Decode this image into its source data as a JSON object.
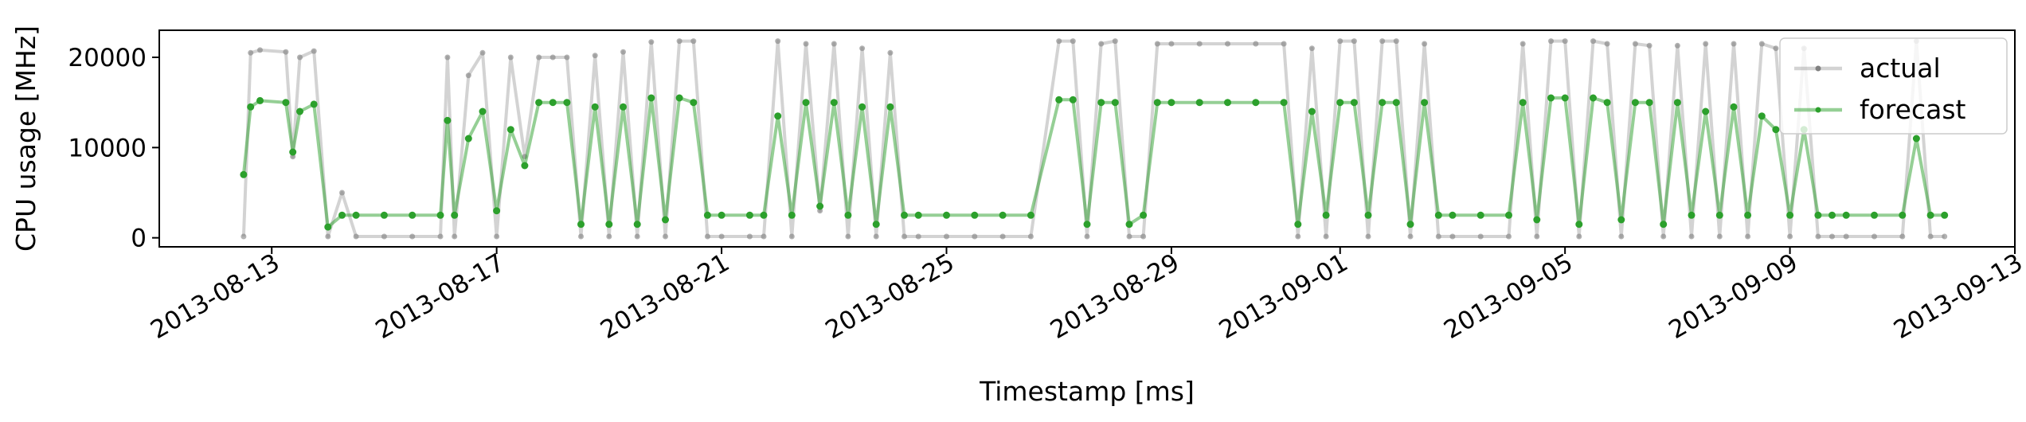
{
  "chart_data": {
    "type": "line",
    "title": "",
    "xlabel": "Timestamp [ms]",
    "ylabel": "CPU usage [MHz]",
    "xlim": [
      "2013-08-11",
      "2013-09-13"
    ],
    "ylim": [
      -1000,
      23000
    ],
    "grid": false,
    "legend": "top-right",
    "x_ticks": [
      "2013-08-13",
      "2013-08-17",
      "2013-08-21",
      "2013-08-25",
      "2013-08-29",
      "2013-09-01",
      "2013-09-05",
      "2013-09-09",
      "2013-09-13"
    ],
    "y_ticks": [
      0,
      10000,
      20000
    ],
    "y_tick_labels": [
      "0",
      "10000",
      "20000"
    ],
    "colors": {
      "actual": "#808080",
      "forecast": "#2ca02c"
    },
    "series": [
      {
        "name": "actual",
        "color": "#808080",
        "points": [
          [
            "2013-08-12T12:00",
            150
          ],
          [
            "2013-08-12T15:00",
            20500
          ],
          [
            "2013-08-12T19:00",
            20800
          ],
          [
            "2013-08-13T06:00",
            20600
          ],
          [
            "2013-08-13T09:00",
            9000
          ],
          [
            "2013-08-13T12:00",
            20000
          ],
          [
            "2013-08-13T18:00",
            20700
          ],
          [
            "2013-08-14T00:00",
            150
          ],
          [
            "2013-08-14T06:00",
            5000
          ],
          [
            "2013-08-14T12:00",
            150
          ],
          [
            "2013-08-15T00:00",
            150
          ],
          [
            "2013-08-15T12:00",
            150
          ],
          [
            "2013-08-16T00:00",
            150
          ],
          [
            "2013-08-16T03:00",
            20000
          ],
          [
            "2013-08-16T06:00",
            150
          ],
          [
            "2013-08-16T12:00",
            18000
          ],
          [
            "2013-08-16T18:00",
            20500
          ],
          [
            "2013-08-17T00:00",
            150
          ],
          [
            "2013-08-17T06:00",
            20000
          ],
          [
            "2013-08-17T12:00",
            9000
          ],
          [
            "2013-08-17T18:00",
            20000
          ],
          [
            "2013-08-18T00:00",
            20000
          ],
          [
            "2013-08-18T06:00",
            20000
          ],
          [
            "2013-08-18T12:00",
            150
          ],
          [
            "2013-08-18T18:00",
            20200
          ],
          [
            "2013-08-19T00:00",
            150
          ],
          [
            "2013-08-19T06:00",
            20600
          ],
          [
            "2013-08-19T12:00",
            150
          ],
          [
            "2013-08-19T18:00",
            21700
          ],
          [
            "2013-08-20T00:00",
            150
          ],
          [
            "2013-08-20T06:00",
            21800
          ],
          [
            "2013-08-20T12:00",
            21800
          ],
          [
            "2013-08-20T18:00",
            150
          ],
          [
            "2013-08-21T00:00",
            150
          ],
          [
            "2013-08-21T12:00",
            150
          ],
          [
            "2013-08-21T18:00",
            150
          ],
          [
            "2013-08-22T00:00",
            21800
          ],
          [
            "2013-08-22T06:00",
            150
          ],
          [
            "2013-08-22T12:00",
            21500
          ],
          [
            "2013-08-22T18:00",
            3000
          ],
          [
            "2013-08-23T00:00",
            21500
          ],
          [
            "2013-08-23T06:00",
            150
          ],
          [
            "2013-08-23T12:00",
            21000
          ],
          [
            "2013-08-23T18:00",
            150
          ],
          [
            "2013-08-24T00:00",
            20500
          ],
          [
            "2013-08-24T06:00",
            150
          ],
          [
            "2013-08-24T12:00",
            150
          ],
          [
            "2013-08-25T00:00",
            150
          ],
          [
            "2013-08-25T12:00",
            150
          ],
          [
            "2013-08-26T00:00",
            150
          ],
          [
            "2013-08-26T12:00",
            150
          ],
          [
            "2013-08-27T00:00",
            21800
          ],
          [
            "2013-08-27T06:00",
            21800
          ],
          [
            "2013-08-27T12:00",
            150
          ],
          [
            "2013-08-27T18:00",
            21500
          ],
          [
            "2013-08-28T00:00",
            21800
          ],
          [
            "2013-08-28T06:00",
            150
          ],
          [
            "2013-08-28T12:00",
            150
          ],
          [
            "2013-08-28T18:00",
            21500
          ],
          [
            "2013-08-29T00:00",
            21500
          ],
          [
            "2013-08-29T12:00",
            21500
          ],
          [
            "2013-08-30T00:00",
            21500
          ],
          [
            "2013-08-30T12:00",
            21500
          ],
          [
            "2013-08-31T00:00",
            21500
          ],
          [
            "2013-08-31T06:00",
            150
          ],
          [
            "2013-08-31T12:00",
            21000
          ],
          [
            "2013-08-31T18:00",
            150
          ],
          [
            "2013-09-01T00:00",
            21800
          ],
          [
            "2013-09-01T06:00",
            21800
          ],
          [
            "2013-09-01T12:00",
            150
          ],
          [
            "2013-09-01T18:00",
            21800
          ],
          [
            "2013-09-02T00:00",
            21800
          ],
          [
            "2013-09-02T06:00",
            150
          ],
          [
            "2013-09-02T12:00",
            21500
          ],
          [
            "2013-09-02T18:00",
            150
          ],
          [
            "2013-09-03T00:00",
            150
          ],
          [
            "2013-09-03T12:00",
            150
          ],
          [
            "2013-09-04T00:00",
            150
          ],
          [
            "2013-09-04T06:00",
            21500
          ],
          [
            "2013-09-04T12:00",
            150
          ],
          [
            "2013-09-04T18:00",
            21800
          ],
          [
            "2013-09-05T00:00",
            21800
          ],
          [
            "2013-09-05T06:00",
            150
          ],
          [
            "2013-09-05T12:00",
            21800
          ],
          [
            "2013-09-05T18:00",
            21500
          ],
          [
            "2013-09-06T00:00",
            150
          ],
          [
            "2013-09-06T06:00",
            21500
          ],
          [
            "2013-09-06T12:00",
            21300
          ],
          [
            "2013-09-06T18:00",
            150
          ],
          [
            "2013-09-07T00:00",
            21300
          ],
          [
            "2013-09-07T06:00",
            150
          ],
          [
            "2013-09-07T12:00",
            21500
          ],
          [
            "2013-09-07T18:00",
            150
          ],
          [
            "2013-09-08T00:00",
            21500
          ],
          [
            "2013-09-08T06:00",
            150
          ],
          [
            "2013-09-08T12:00",
            21500
          ],
          [
            "2013-09-08T18:00",
            21000
          ],
          [
            "2013-09-09T00:00",
            150
          ],
          [
            "2013-09-09T06:00",
            21000
          ],
          [
            "2013-09-09T12:00",
            150
          ],
          [
            "2013-09-09T18:00",
            150
          ],
          [
            "2013-09-10T00:00",
            150
          ],
          [
            "2013-09-10T12:00",
            150
          ],
          [
            "2013-09-11T00:00",
            150
          ],
          [
            "2013-09-11T06:00",
            21800
          ],
          [
            "2013-09-11T12:00",
            150
          ],
          [
            "2013-09-11T18:00",
            150
          ]
        ]
      },
      {
        "name": "forecast",
        "color": "#2ca02c",
        "points": [
          [
            "2013-08-12T12:00",
            7000
          ],
          [
            "2013-08-12T15:00",
            14500
          ],
          [
            "2013-08-12T19:00",
            15200
          ],
          [
            "2013-08-13T06:00",
            15000
          ],
          [
            "2013-08-13T09:00",
            9500
          ],
          [
            "2013-08-13T12:00",
            14000
          ],
          [
            "2013-08-13T18:00",
            14800
          ],
          [
            "2013-08-14T00:00",
            1200
          ],
          [
            "2013-08-14T06:00",
            2500
          ],
          [
            "2013-08-14T12:00",
            2500
          ],
          [
            "2013-08-15T00:00",
            2500
          ],
          [
            "2013-08-15T12:00",
            2500
          ],
          [
            "2013-08-16T00:00",
            2500
          ],
          [
            "2013-08-16T03:00",
            13000
          ],
          [
            "2013-08-16T06:00",
            2500
          ],
          [
            "2013-08-16T12:00",
            11000
          ],
          [
            "2013-08-16T18:00",
            14000
          ],
          [
            "2013-08-17T00:00",
            3000
          ],
          [
            "2013-08-17T06:00",
            12000
          ],
          [
            "2013-08-17T12:00",
            8000
          ],
          [
            "2013-08-17T18:00",
            15000
          ],
          [
            "2013-08-18T00:00",
            15000
          ],
          [
            "2013-08-18T06:00",
            15000
          ],
          [
            "2013-08-18T12:00",
            1500
          ],
          [
            "2013-08-18T18:00",
            14500
          ],
          [
            "2013-08-19T00:00",
            1500
          ],
          [
            "2013-08-19T06:00",
            14500
          ],
          [
            "2013-08-19T12:00",
            1500
          ],
          [
            "2013-08-19T18:00",
            15500
          ],
          [
            "2013-08-20T00:00",
            2000
          ],
          [
            "2013-08-20T06:00",
            15500
          ],
          [
            "2013-08-20T12:00",
            15000
          ],
          [
            "2013-08-20T18:00",
            2500
          ],
          [
            "2013-08-21T00:00",
            2500
          ],
          [
            "2013-08-21T12:00",
            2500
          ],
          [
            "2013-08-21T18:00",
            2500
          ],
          [
            "2013-08-22T00:00",
            13500
          ],
          [
            "2013-08-22T06:00",
            2500
          ],
          [
            "2013-08-22T12:00",
            15000
          ],
          [
            "2013-08-22T18:00",
            3500
          ],
          [
            "2013-08-23T00:00",
            15000
          ],
          [
            "2013-08-23T06:00",
            2500
          ],
          [
            "2013-08-23T12:00",
            14500
          ],
          [
            "2013-08-23T18:00",
            1500
          ],
          [
            "2013-08-24T00:00",
            14500
          ],
          [
            "2013-08-24T06:00",
            2500
          ],
          [
            "2013-08-24T12:00",
            2500
          ],
          [
            "2013-08-25T00:00",
            2500
          ],
          [
            "2013-08-25T12:00",
            2500
          ],
          [
            "2013-08-26T00:00",
            2500
          ],
          [
            "2013-08-26T12:00",
            2500
          ],
          [
            "2013-08-27T00:00",
            15300
          ],
          [
            "2013-08-27T06:00",
            15300
          ],
          [
            "2013-08-27T12:00",
            1500
          ],
          [
            "2013-08-27T18:00",
            15000
          ],
          [
            "2013-08-28T00:00",
            15000
          ],
          [
            "2013-08-28T06:00",
            1500
          ],
          [
            "2013-08-28T12:00",
            2500
          ],
          [
            "2013-08-28T18:00",
            15000
          ],
          [
            "2013-08-29T00:00",
            15000
          ],
          [
            "2013-08-29T12:00",
            15000
          ],
          [
            "2013-08-30T00:00",
            15000
          ],
          [
            "2013-08-30T12:00",
            15000
          ],
          [
            "2013-08-31T00:00",
            15000
          ],
          [
            "2013-08-31T06:00",
            1500
          ],
          [
            "2013-08-31T12:00",
            14000
          ],
          [
            "2013-08-31T18:00",
            2500
          ],
          [
            "2013-09-01T00:00",
            15000
          ],
          [
            "2013-09-01T06:00",
            15000
          ],
          [
            "2013-09-01T12:00",
            2500
          ],
          [
            "2013-09-01T18:00",
            15000
          ],
          [
            "2013-09-02T00:00",
            15000
          ],
          [
            "2013-09-02T06:00",
            1500
          ],
          [
            "2013-09-02T12:00",
            15000
          ],
          [
            "2013-09-02T18:00",
            2500
          ],
          [
            "2013-09-03T00:00",
            2500
          ],
          [
            "2013-09-03T12:00",
            2500
          ],
          [
            "2013-09-04T00:00",
            2500
          ],
          [
            "2013-09-04T06:00",
            15000
          ],
          [
            "2013-09-04T12:00",
            2000
          ],
          [
            "2013-09-04T18:00",
            15500
          ],
          [
            "2013-09-05T00:00",
            15500
          ],
          [
            "2013-09-05T06:00",
            1500
          ],
          [
            "2013-09-05T12:00",
            15500
          ],
          [
            "2013-09-05T18:00",
            15000
          ],
          [
            "2013-09-06T00:00",
            2000
          ],
          [
            "2013-09-06T06:00",
            15000
          ],
          [
            "2013-09-06T12:00",
            15000
          ],
          [
            "2013-09-06T18:00",
            1500
          ],
          [
            "2013-09-07T00:00",
            15000
          ],
          [
            "2013-09-07T06:00",
            2500
          ],
          [
            "2013-09-07T12:00",
            14000
          ],
          [
            "2013-09-07T18:00",
            2500
          ],
          [
            "2013-09-08T00:00",
            14500
          ],
          [
            "2013-09-08T06:00",
            2500
          ],
          [
            "2013-09-08T12:00",
            13500
          ],
          [
            "2013-09-08T18:00",
            12000
          ],
          [
            "2013-09-09T00:00",
            2500
          ],
          [
            "2013-09-09T06:00",
            12000
          ],
          [
            "2013-09-09T12:00",
            2500
          ],
          [
            "2013-09-09T18:00",
            2500
          ],
          [
            "2013-09-10T00:00",
            2500
          ],
          [
            "2013-09-10T12:00",
            2500
          ],
          [
            "2013-09-11T00:00",
            2500
          ],
          [
            "2013-09-11T06:00",
            11000
          ],
          [
            "2013-09-11T12:00",
            2500
          ],
          [
            "2013-09-11T18:00",
            2500
          ]
        ]
      }
    ]
  }
}
